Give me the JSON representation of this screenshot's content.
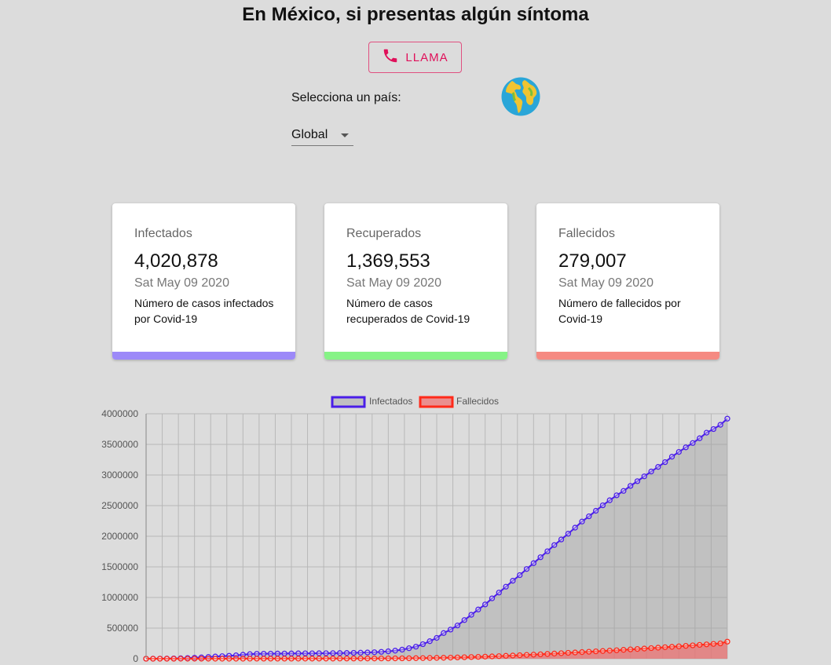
{
  "header": {
    "title": "En México, si presentas algún síntoma",
    "call_label": "LLAMA"
  },
  "selector": {
    "label": "Selecciona un país:",
    "selected": "Global"
  },
  "cards": [
    {
      "label": "Infectados",
      "value": "4,020,878",
      "date": "Sat May 09 2020",
      "desc": "Número de casos infectados por Covid-19",
      "color": "#9c89f8"
    },
    {
      "label": "Recuperados",
      "value": "1,369,553",
      "date": "Sat May 09 2020",
      "desc": "Número de casos recuperados de Covid-19",
      "color": "#86f386"
    },
    {
      "label": "Fallecidos",
      "value": "279,007",
      "date": "Sat May 09 2020",
      "desc": "Número de fallecidos por Covid-19",
      "color": "#f58a82"
    }
  ],
  "colors": {
    "accent": "#e0105a",
    "infected_line": "#4a1ee8",
    "deaths_line": "#ff2a1a"
  },
  "icons": {
    "call": "phone-icon",
    "globe": "globe-icon"
  },
  "chart_data": {
    "type": "line",
    "ylim": [
      0,
      4000000
    ],
    "yticks": [
      "4000000",
      "3500000",
      "3000000",
      "2500000",
      "2000000",
      "1500000",
      "1000000",
      "500000",
      "0"
    ],
    "series": [
      {
        "name": "Infectados",
        "color": "#4a1ee8",
        "fill": "rgba(160,160,160,0.45)",
        "values": [
          0,
          1000,
          2000,
          3000,
          5000,
          7000,
          11000,
          16000,
          22000,
          28000,
          36000,
          42000,
          48000,
          55000,
          65000,
          75000,
          80000,
          82000,
          83000,
          84000,
          85000,
          86000,
          87000,
          88000,
          88000,
          89000,
          90000,
          91000,
          92000,
          94000,
          96000,
          99000,
          102000,
          106000,
          112000,
          121000,
          132000,
          148000,
          171000,
          197000,
          237000,
          286000,
          340000,
          419000,
          476000,
          543000,
          631000,
          717000,
          804000,
          886000,
          986000,
          1080000,
          1176000,
          1273000,
          1365000,
          1465000,
          1560000,
          1657000,
          1755000,
          1856000,
          1947000,
          2041000,
          2140000,
          2240000,
          2325000,
          2416000,
          2505000,
          2587000,
          2668000,
          2740000,
          2822000,
          2899000,
          2978000,
          3057000,
          3132000,
          3210000,
          3299000,
          3377000,
          3451000,
          3522000,
          3600000,
          3691000,
          3750000,
          3820000,
          3920000
        ]
      },
      {
        "name": "Fallecidos",
        "color": "#ff2a1a",
        "fill": "rgba(240,110,110,0.7)",
        "values": [
          0,
          50,
          80,
          120,
          180,
          260,
          360,
          430,
          500,
          560,
          640,
          720,
          800,
          900,
          1000,
          1110,
          1250,
          1350,
          1460,
          1580,
          1700,
          1800,
          1900,
          2050,
          2200,
          2350,
          2500,
          2650,
          2800,
          2950,
          3200,
          3450,
          3700,
          4000,
          4400,
          5000,
          5700,
          6500,
          7500,
          8800,
          10000,
          11800,
          13500,
          15500,
          18000,
          21000,
          24000,
          27000,
          30000,
          34000,
          38000,
          42000,
          47000,
          52000,
          57000,
          62000,
          67000,
          72000,
          78000,
          84000,
          90000,
          96000,
          102000,
          108000,
          114000,
          120000,
          126000,
          132000,
          138000,
          145000,
          152000,
          159000,
          166000,
          173000,
          180000,
          188000,
          195000,
          202000,
          210000,
          218000,
          226000,
          234000,
          242000,
          250000,
          279007
        ]
      }
    ]
  }
}
